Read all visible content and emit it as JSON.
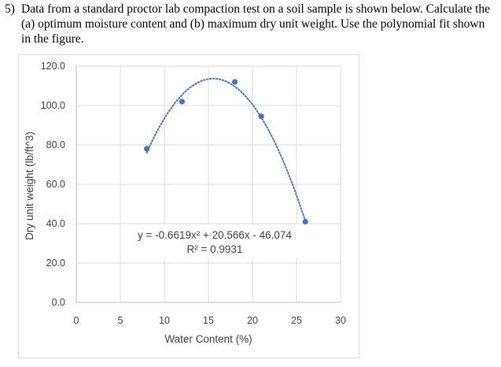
{
  "question": {
    "number": "5)",
    "text": "Data from a standard proctor lab compaction test on a soil sample is shown below. Calculate the (a) optimum moisture content and (b) maximum dry unit weight. Use the polynomial fit shown in the figure."
  },
  "chart_data": {
    "type": "scatter",
    "title": "",
    "xlabel": "Water Content (%)",
    "ylabel": "Dry unit weight (lb/ft^3)",
    "xlim": [
      0,
      30
    ],
    "ylim": [
      0,
      120
    ],
    "x_ticks": [
      "0",
      "5",
      "10",
      "15",
      "20",
      "25",
      "30"
    ],
    "y_ticks": [
      "0.0",
      "20.0",
      "40.0",
      "60.0",
      "80.0",
      "100.0",
      "120.0"
    ],
    "grid": true,
    "legend": "none",
    "series": [
      {
        "x": [
          8,
          12,
          18,
          21,
          26
        ],
        "y": [
          78,
          102,
          112,
          94.5,
          41
        ],
        "marker_color": "#4472c4"
      }
    ],
    "trendline": {
      "type": "polynomial",
      "order": 2,
      "coefficients": [
        -0.6619,
        20.566,
        -46.074
      ],
      "x_range": [
        8,
        26
      ],
      "style": "dotted",
      "color": "#4472c4",
      "equation": "y = -0.6619x² + 20.566x - 46.074",
      "r_squared": "R² = 0.9931"
    }
  }
}
